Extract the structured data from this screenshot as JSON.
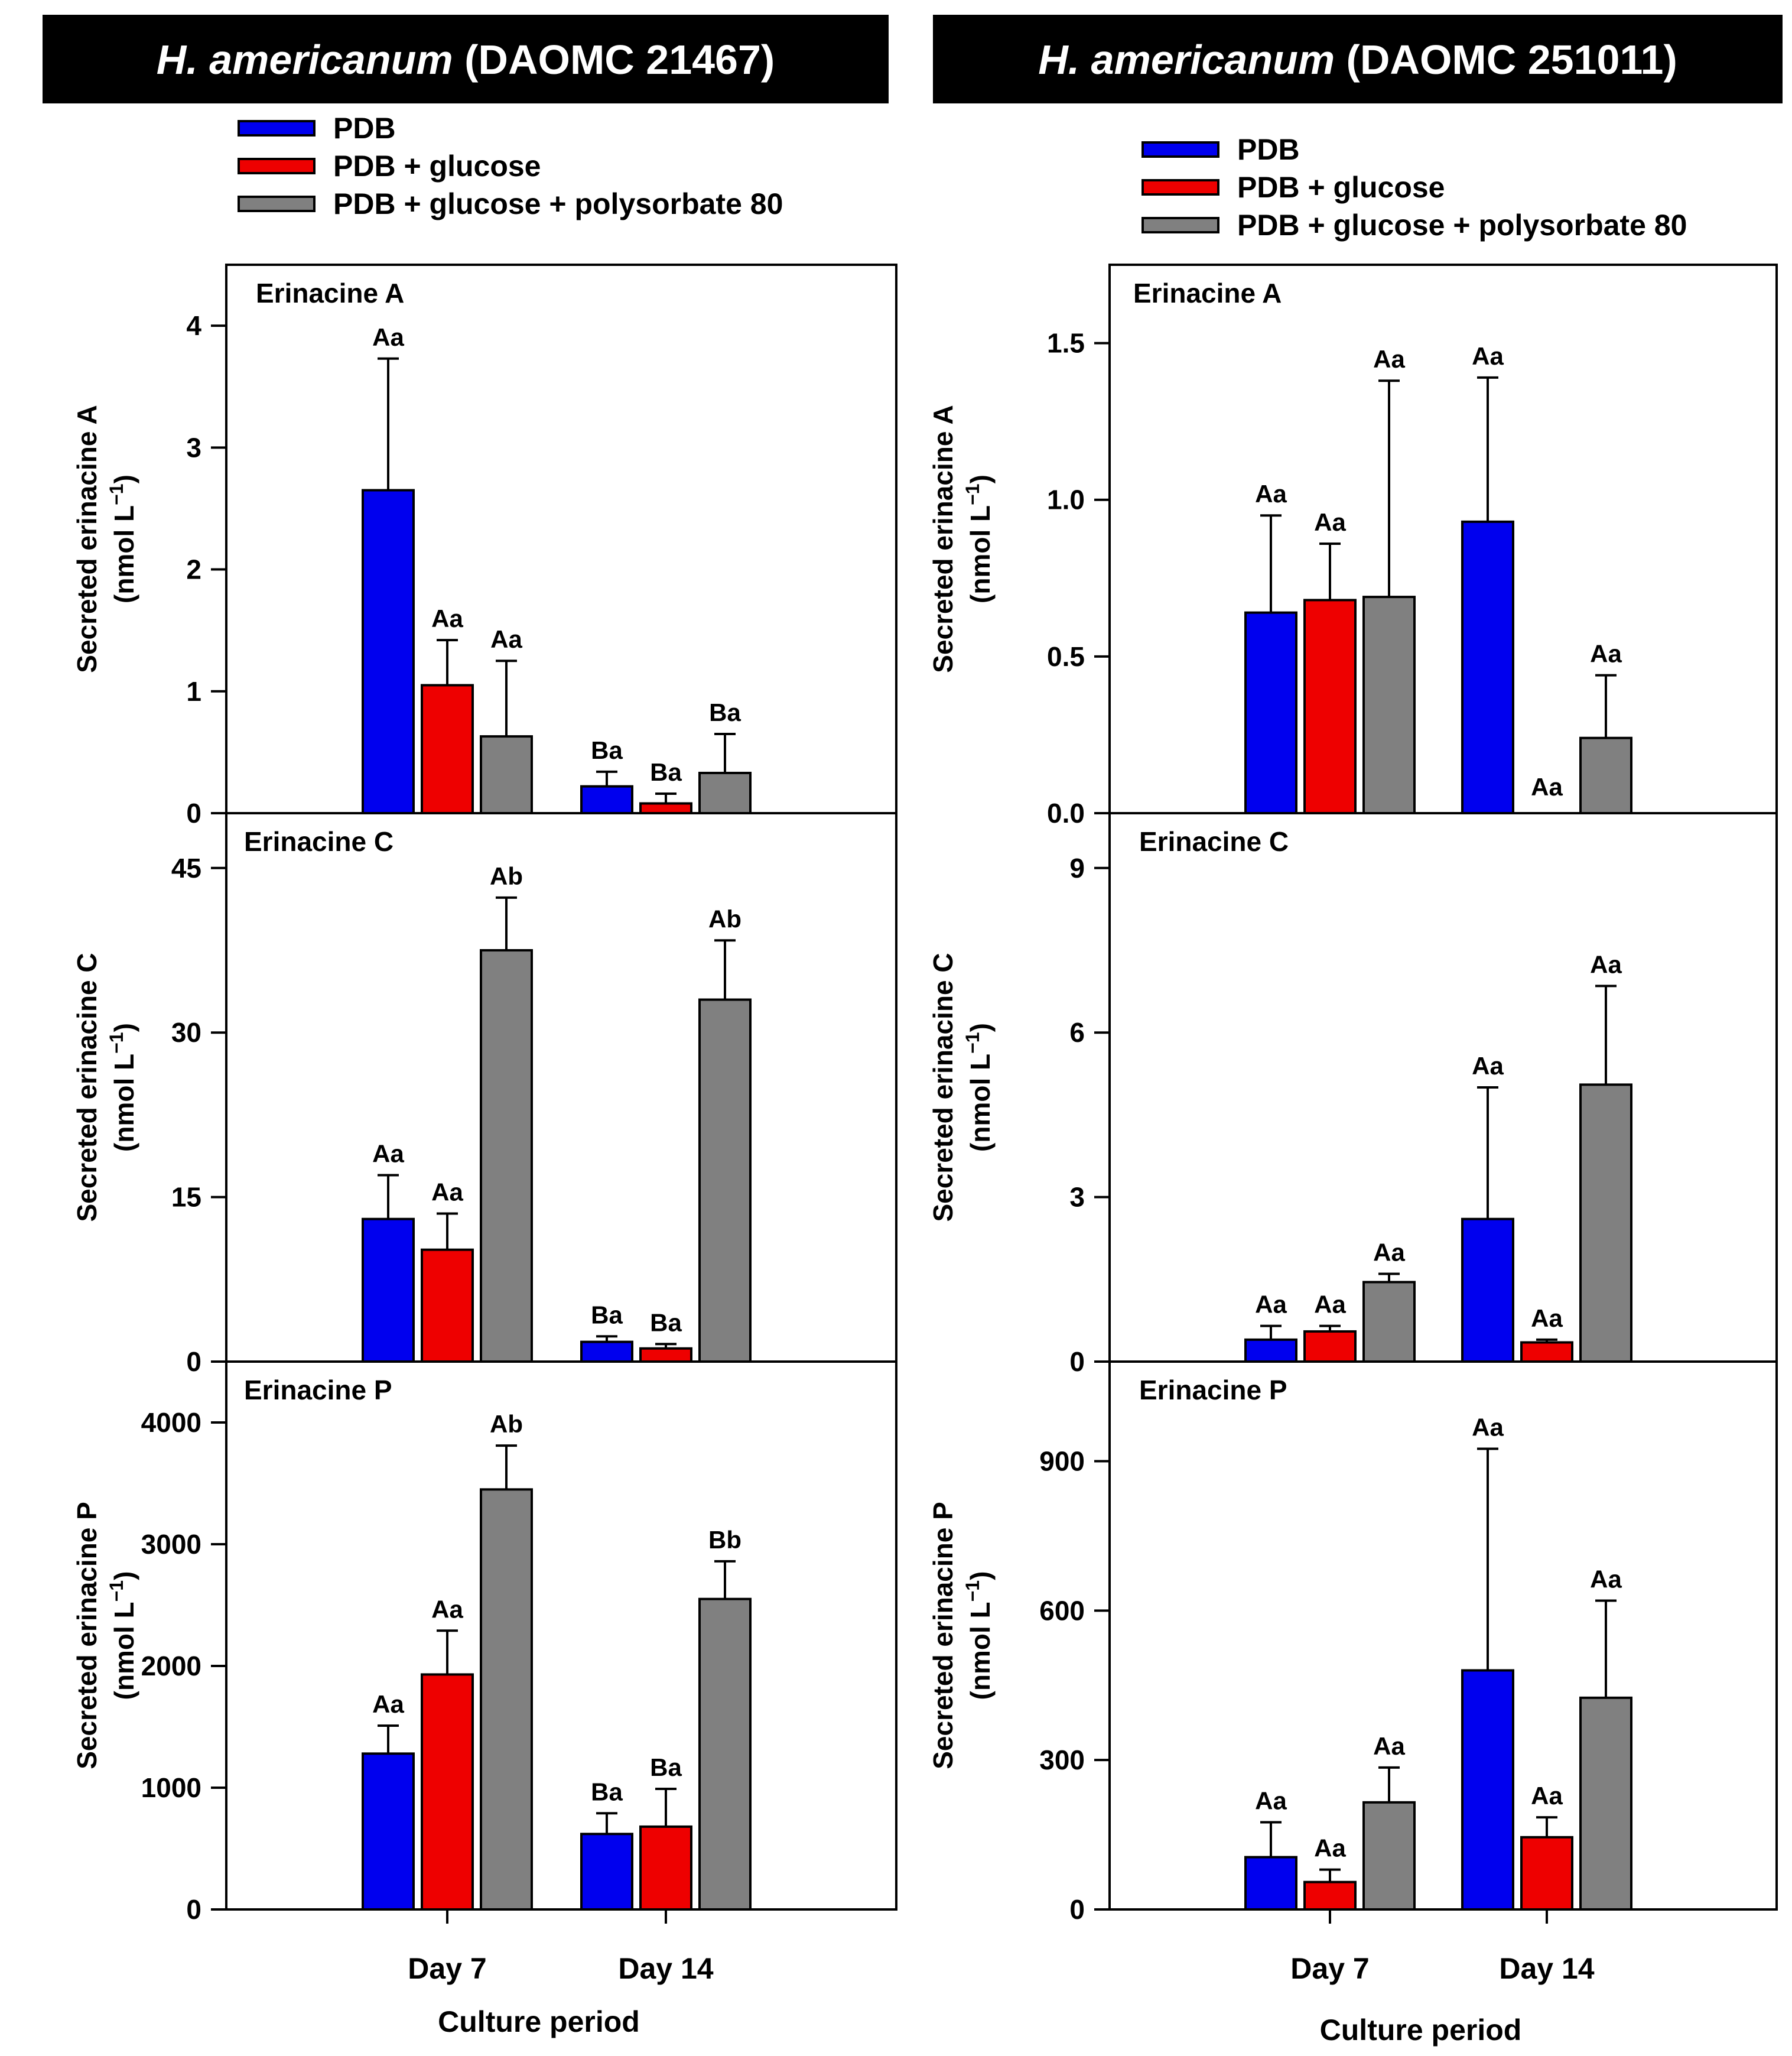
{
  "colors": {
    "PDB": "#0000ee",
    "PDB + glucose": "#ee0000",
    "PDB + glucose + polysorbate 80": "#808080",
    "title_bg": "#000000",
    "title_text": "#ffffff"
  },
  "chart_data": [
    {
      "type": "bar",
      "strain_title": {
        "italic": "H. americanum",
        "rest": " (DAOMC 21467)"
      },
      "legend": [
        "PDB",
        "PDB + glucose",
        "PDB + glucose + polysorbate 80"
      ],
      "xlabel": "Culture period",
      "categories": [
        "Day 7",
        "Day 14"
      ],
      "panels": [
        {
          "name": "Erinacine A",
          "ylabel_line1": "Secreted erinacine A",
          "ylabel_line2": "(nmol L−1)",
          "ylim": [
            0,
            4.5
          ],
          "yticks": [
            0,
            1,
            2,
            3,
            4
          ],
          "ytick_labels": [
            "0",
            "1",
            "2",
            "3",
            "4"
          ],
          "series": [
            {
              "name": "PDB",
              "values": [
                2.65,
                0.22
              ],
              "errors": [
                1.08,
                0.12
              ],
              "letters": [
                "Aa",
                "Ba"
              ]
            },
            {
              "name": "PDB + glucose",
              "values": [
                1.05,
                0.08
              ],
              "errors": [
                0.37,
                0.08
              ],
              "letters": [
                "Aa",
                "Ba"
              ]
            },
            {
              "name": "PDB + glucose + polysorbate 80",
              "values": [
                0.63,
                0.33
              ],
              "errors": [
                0.62,
                0.32
              ],
              "letters": [
                "Aa",
                "Ba"
              ]
            }
          ]
        },
        {
          "name": "Erinacine C",
          "ylabel_line1": "Secreted erinacine C",
          "ylabel_line2": "(nmol L−1)",
          "ylim": [
            0,
            50
          ],
          "yticks": [
            0,
            15,
            30,
            45
          ],
          "ytick_labels": [
            "0",
            "15",
            "30",
            "45"
          ],
          "series": [
            {
              "name": "PDB",
              "values": [
                13.0,
                1.8
              ],
              "errors": [
                4.0,
                0.5
              ],
              "letters": [
                "Aa",
                "Ba"
              ]
            },
            {
              "name": "PDB + glucose",
              "values": [
                10.2,
                1.2
              ],
              "errors": [
                3.3,
                0.4
              ],
              "letters": [
                "Aa",
                "Ba"
              ]
            },
            {
              "name": "PDB + glucose + polysorbate 80",
              "values": [
                37.5,
                33.0
              ],
              "errors": [
                4.8,
                5.4
              ],
              "letters": [
                "Ab",
                "Ab"
              ]
            }
          ]
        },
        {
          "name": "Erinacine P",
          "ylabel_line1": "Secreted erinacine P",
          "ylabel_line2": "(nmol L−1)",
          "ylim": [
            0,
            4500
          ],
          "yticks": [
            0,
            1000,
            2000,
            3000,
            4000
          ],
          "ytick_labels": [
            "0",
            "1000",
            "2000",
            "3000",
            "4000"
          ],
          "series": [
            {
              "name": "PDB",
              "values": [
                1280,
                620
              ],
              "errors": [
                230,
                170
              ],
              "letters": [
                "Aa",
                "Ba"
              ]
            },
            {
              "name": "PDB + glucose",
              "values": [
                1930,
                680
              ],
              "errors": [
                360,
                310
              ],
              "letters": [
                "Aa",
                "Ba"
              ]
            },
            {
              "name": "PDB + glucose + polysorbate 80",
              "values": [
                3450,
                2550
              ],
              "errors": [
                360,
                310
              ],
              "letters": [
                "Ab",
                "Bb"
              ]
            }
          ]
        }
      ]
    },
    {
      "type": "bar",
      "strain_title": {
        "italic": "H.  americanum",
        "rest": " (DAOMC 251011)"
      },
      "legend": [
        "PDB",
        "PDB + glucose",
        "PDB + glucose + polysorbate 80"
      ],
      "xlabel": "Culture period",
      "categories": [
        "Day 7",
        "Day 14"
      ],
      "panels": [
        {
          "name": "Erinacine A",
          "ylabel_line1": "Secreted erinacine A",
          "ylabel_line2": "(nmol L−1)",
          "ylim": [
            0,
            1.75
          ],
          "yticks": [
            0,
            0.5,
            1.0,
            1.5
          ],
          "ytick_labels": [
            "0.0",
            "0.5",
            "1.0",
            "1.5"
          ],
          "series": [
            {
              "name": "PDB",
              "values": [
                0.64,
                0.93
              ],
              "errors": [
                0.31,
                0.46
              ],
              "letters": [
                "Aa",
                "Aa"
              ]
            },
            {
              "name": "PDB + glucose",
              "values": [
                0.68,
                0.0
              ],
              "errors": [
                0.18,
                0.0
              ],
              "letters": [
                "Aa",
                "Aa"
              ]
            },
            {
              "name": "PDB + glucose + polysorbate 80",
              "values": [
                0.69,
                0.24
              ],
              "errors": [
                0.69,
                0.2
              ],
              "letters": [
                "Aa",
                "Aa"
              ]
            }
          ]
        },
        {
          "name": "Erinacine C",
          "ylabel_line1": "Secreted erinacine C",
          "ylabel_line2": "(nmol L−1)",
          "ylim": [
            0,
            10
          ],
          "yticks": [
            0,
            3,
            6,
            9
          ],
          "ytick_labels": [
            "0",
            "3",
            "6",
            "9"
          ],
          "series": [
            {
              "name": "PDB",
              "values": [
                0.4,
                2.6
              ],
              "errors": [
                0.25,
                2.4
              ],
              "letters": [
                "Aa",
                "Aa"
              ]
            },
            {
              "name": "PDB + glucose",
              "values": [
                0.55,
                0.35
              ],
              "errors": [
                0.1,
                0.05
              ],
              "letters": [
                "Aa",
                "Aa"
              ]
            },
            {
              "name": "PDB + glucose + polysorbate 80",
              "values": [
                1.45,
                5.05
              ],
              "errors": [
                0.15,
                1.8
              ],
              "letters": [
                "Aa",
                "Aa"
              ]
            }
          ]
        },
        {
          "name": "Erinacine P",
          "ylabel_line1": "Secreted erinacine P",
          "ylabel_line2": "(nmol L−1)",
          "ylim": [
            0,
            1100
          ],
          "yticks": [
            0,
            300,
            600,
            900
          ],
          "ytick_labels": [
            "0",
            "300",
            "600",
            "900"
          ],
          "series": [
            {
              "name": "PDB",
              "values": [
                105,
                480
              ],
              "errors": [
                70,
                445
              ],
              "letters": [
                "Aa",
                "Aa"
              ]
            },
            {
              "name": "PDB + glucose",
              "values": [
                55,
                145
              ],
              "errors": [
                25,
                40
              ],
              "letters": [
                "Aa",
                "Aa"
              ]
            },
            {
              "name": "PDB + glucose + polysorbate 80",
              "values": [
                215,
                425
              ],
              "errors": [
                70,
                195
              ],
              "letters": [
                "Aa",
                "Aa"
              ]
            }
          ]
        }
      ]
    }
  ]
}
